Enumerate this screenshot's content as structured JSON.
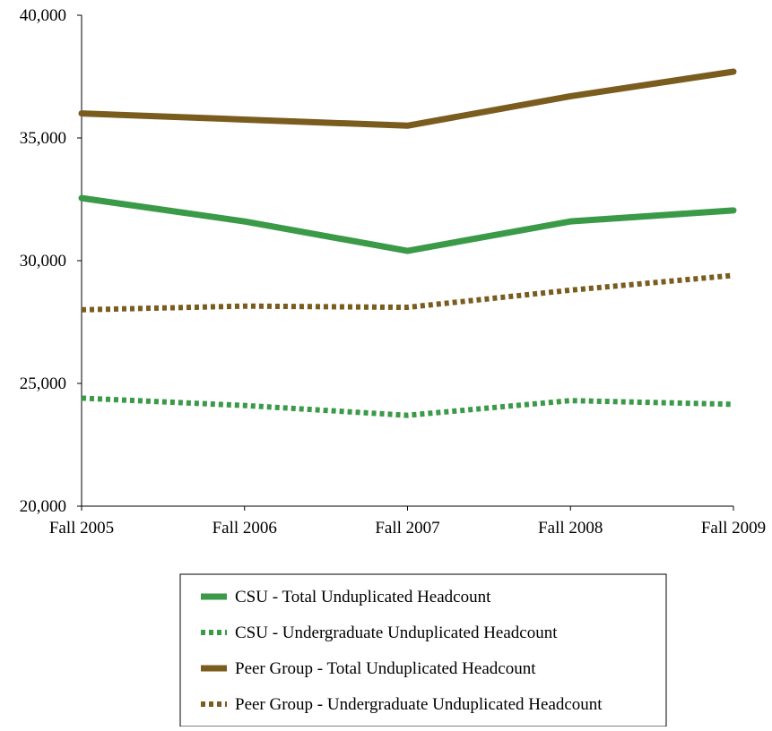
{
  "chart_data": {
    "type": "line",
    "categories": [
      "Fall 2005",
      "Fall 2006",
      "Fall 2007",
      "Fall 2008",
      "Fall 2009"
    ],
    "ylim": [
      20000,
      40000
    ],
    "yticks": [
      20000,
      25000,
      30000,
      35000,
      40000
    ],
    "ytick_labels": [
      "20,000",
      "25,000",
      "30,000",
      "35,000",
      "40,000"
    ],
    "grid": false,
    "legend_position": "bottom",
    "series": [
      {
        "name": "CSU - Total Unduplicated Headcount",
        "color": "#3a9a48",
        "style": "solid",
        "values": [
          32550,
          31600,
          30400,
          31600,
          32050
        ]
      },
      {
        "name": "CSU - Undergraduate Unduplicated Headcount",
        "color": "#3a9a48",
        "style": "dotted",
        "values": [
          24400,
          24100,
          23700,
          24300,
          24150
        ]
      },
      {
        "name": "Peer Group - Total Unduplicated Headcount",
        "color": "#7a5c1e",
        "style": "solid",
        "values": [
          36000,
          35750,
          35500,
          36700,
          37700
        ]
      },
      {
        "name": "Peer Group - Undergraduate Unduplicated Headcount",
        "color": "#7a5c1e",
        "style": "dotted",
        "values": [
          28000,
          28150,
          28100,
          28800,
          29400
        ]
      }
    ]
  }
}
